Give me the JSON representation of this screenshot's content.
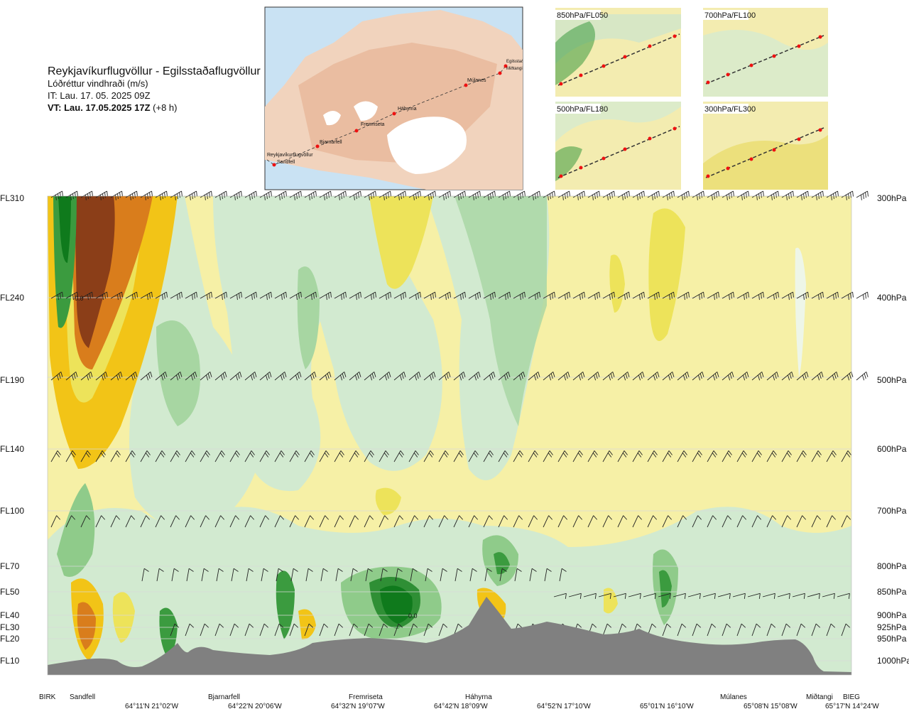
{
  "header": {
    "route": "Reykjavíkurflugvöllur - Egilsstaðaflugvöllur",
    "parameter": "Lóðréttur vindhraði (m/s)",
    "issue_time": "IT: Lau. 17. 05. 2025 09Z",
    "valid_prefix": "VT: Lau. 17.05.2025 17Z",
    "valid_offset": "(+8 h)"
  },
  "map": {
    "stations": [
      "Reykjavíkurflugvöllur",
      "Sandfell",
      "Bjarnarfell",
      "Fremriseta",
      "Háhyrna",
      "Múlanes",
      "Egilsstaðir",
      "Miðtangi"
    ]
  },
  "inset_panels": [
    "850hPa/FL050",
    "700hPa/FL100",
    "500hPa/FL180",
    "300hPa/FL300"
  ],
  "chart_data": {
    "type": "heatmap",
    "title": "Lóðréttur vindhraði (m/s)",
    "variable": "vertical wind speed",
    "units": "m/s",
    "flight_levels": [
      {
        "fl": "FL310",
        "hpa": "300hPa"
      },
      {
        "fl": "FL240",
        "hpa": "400hPa"
      },
      {
        "fl": "FL190",
        "hpa": "500hPa"
      },
      {
        "fl": "FL140",
        "hpa": "600hPa"
      },
      {
        "fl": "FL100",
        "hpa": "700hPa"
      },
      {
        "fl": "FL70",
        "hpa": "800hPa"
      },
      {
        "fl": "FL50",
        "hpa": "850hPa"
      },
      {
        "fl": "FL40",
        "hpa": "900hPa"
      },
      {
        "fl": "FL30",
        "hpa": "925hPa"
      },
      {
        "fl": "FL20",
        "hpa": "950hPa"
      },
      {
        "fl": "FL10",
        "hpa": "1000hPa"
      }
    ],
    "route_locations": [
      "BIRK",
      "Sandfell",
      "Bjarnarfell",
      "Fremriseta",
      "Háhyrna",
      "Múlanes",
      "Miðtangi",
      "BIEG"
    ],
    "coordinates": [
      "64°11'N 21°02'W",
      "64°22'N 20°06'W",
      "64°32'N 19°07'W",
      "64°42'N 18°09'W",
      "64°52'N 17°10'W",
      "65°01'N 16°10'W",
      "65°08'N 15°08'W",
      "65°17'N 14°24'W"
    ],
    "annotations": [
      "0.0",
      "0.0"
    ],
    "colors": {
      "strong_up": "#8b3e18",
      "up": "#d97d1c",
      "weak_up": "#f2c417",
      "light_up": "#ede35a",
      "neutral": "#f6f0a6",
      "light_down": "#cfe9cc",
      "down": "#8fcb8a",
      "strong_down": "#3b9b3f",
      "very_strong_down": "#0f7a1c",
      "terrain": "#808080"
    }
  }
}
